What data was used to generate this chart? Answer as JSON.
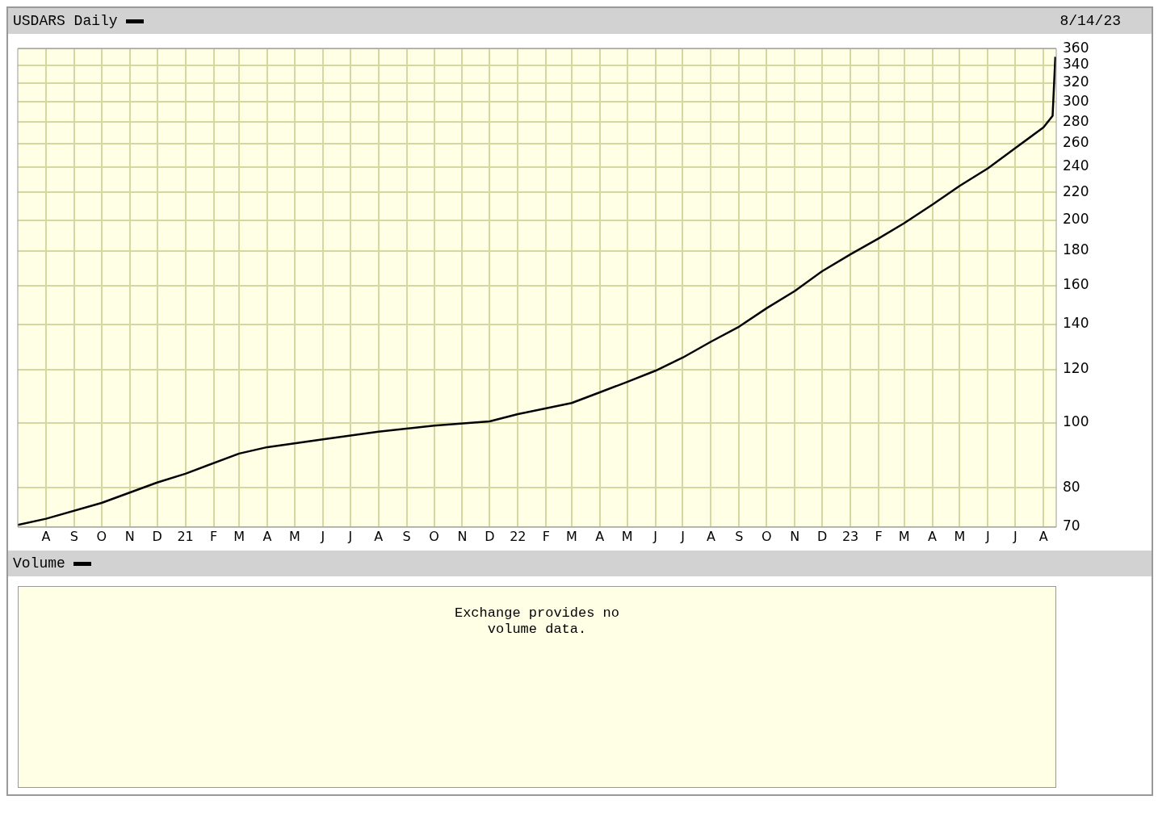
{
  "chart_data": [
    {
      "type": "line",
      "title": "USDARS Daily",
      "subtitle": "8/14/23",
      "x": [
        "2020-07-01",
        "2020-08-01",
        "2020-10-01",
        "2020-12-01",
        "2021-01-01",
        "2021-03-01",
        "2021-04-01",
        "2021-06-01",
        "2021-08-01",
        "2021-10-01",
        "2021-12-01",
        "2022-01-01",
        "2022-03-01",
        "2022-04-01",
        "2022-05-01",
        "2022-06-01",
        "2022-07-01",
        "2022-08-01",
        "2022-09-01",
        "2022-10-01",
        "2022-11-01",
        "2022-12-01",
        "2023-01-01",
        "2023-02-01",
        "2023-03-01",
        "2023-04-01",
        "2023-05-01",
        "2023-06-01",
        "2023-07-01",
        "2023-08-01",
        "2023-08-11",
        "2023-08-14"
      ],
      "series": [
        {
          "color": "#000000",
          "values": [
            70.5,
            72,
            76,
            81.5,
            84,
            90,
            92,
            94.5,
            97,
            99,
            100.5,
            103,
            107,
            111,
            115,
            119.5,
            125,
            132,
            139,
            148,
            157,
            168,
            178,
            188,
            198,
            211,
            225,
            239,
            256,
            275,
            286,
            350
          ]
        }
      ],
      "xlim": [
        "2020-07-01",
        "2023-08-15"
      ],
      "xticks": [
        {
          "value": "2020-08-01",
          "label": "A"
        },
        {
          "value": "2020-09-01",
          "label": "S"
        },
        {
          "value": "2020-10-01",
          "label": "O"
        },
        {
          "value": "2020-11-01",
          "label": "N"
        },
        {
          "value": "2020-12-01",
          "label": "D"
        },
        {
          "value": "2021-01-01",
          "label": "21"
        },
        {
          "value": "2021-02-01",
          "label": "F"
        },
        {
          "value": "2021-03-01",
          "label": "M"
        },
        {
          "value": "2021-04-01",
          "label": "A"
        },
        {
          "value": "2021-05-01",
          "label": "M"
        },
        {
          "value": "2021-06-01",
          "label": "J"
        },
        {
          "value": "2021-07-01",
          "label": "J"
        },
        {
          "value": "2021-08-01",
          "label": "A"
        },
        {
          "value": "2021-09-01",
          "label": "S"
        },
        {
          "value": "2021-10-01",
          "label": "O"
        },
        {
          "value": "2021-11-01",
          "label": "N"
        },
        {
          "value": "2021-12-01",
          "label": "D"
        },
        {
          "value": "2022-01-01",
          "label": "22"
        },
        {
          "value": "2022-02-01",
          "label": "F"
        },
        {
          "value": "2022-03-01",
          "label": "M"
        },
        {
          "value": "2022-04-01",
          "label": "A"
        },
        {
          "value": "2022-05-01",
          "label": "M"
        },
        {
          "value": "2022-06-01",
          "label": "J"
        },
        {
          "value": "2022-07-01",
          "label": "J"
        },
        {
          "value": "2022-08-01",
          "label": "A"
        },
        {
          "value": "2022-09-01",
          "label": "S"
        },
        {
          "value": "2022-10-01",
          "label": "O"
        },
        {
          "value": "2022-11-01",
          "label": "N"
        },
        {
          "value": "2022-12-01",
          "label": "D"
        },
        {
          "value": "2023-01-01",
          "label": "23"
        },
        {
          "value": "2023-02-01",
          "label": "F"
        },
        {
          "value": "2023-03-01",
          "label": "M"
        },
        {
          "value": "2023-04-01",
          "label": "A"
        },
        {
          "value": "2023-05-01",
          "label": "M"
        },
        {
          "value": "2023-06-01",
          "label": "J"
        },
        {
          "value": "2023-07-01",
          "label": "J"
        },
        {
          "value": "2023-08-01",
          "label": "A"
        }
      ],
      "ylim": [
        70,
        360
      ],
      "yticks": [
        70,
        80,
        100,
        120,
        140,
        160,
        180,
        200,
        220,
        240,
        260,
        280,
        300,
        320,
        340,
        360
      ],
      "log": "y",
      "grid": true,
      "marker": "none"
    },
    {
      "type": "other",
      "title": "Volume",
      "annotations": [
        "Exchange provides no volume data."
      ]
    }
  ]
}
